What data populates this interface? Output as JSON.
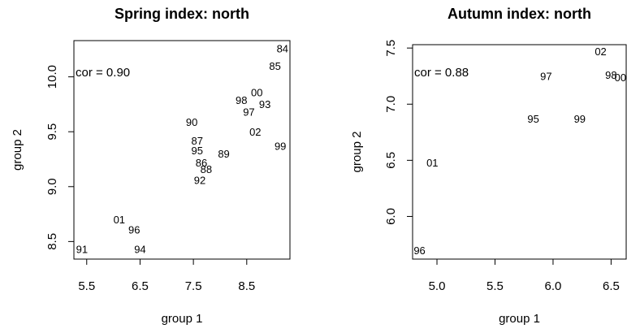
{
  "chart_data": [
    {
      "type": "scatter",
      "title": "Spring index: north",
      "x_label": "group 1",
      "y_label": "group 2",
      "annotation": "cor = 0.90",
      "xlim": [
        5.26,
        9.31
      ],
      "ylim": [
        8.34,
        10.33
      ],
      "xticks": [
        5.5,
        6.5,
        7.5,
        8.5
      ],
      "yticks": [
        {
          "value": 8.5,
          "label": "8.5"
        },
        {
          "value": 9,
          "label": "9.0"
        },
        {
          "value": 9.5,
          "label": "9.5"
        },
        {
          "value": 10,
          "label": "10.0"
        }
      ],
      "series": [
        {
          "color": "#000000",
          "labels": [
            "84",
            "85",
            "00",
            "98",
            "93",
            "97",
            "90",
            "02",
            "87",
            "99",
            "95",
            "89",
            "86",
            "88",
            "92",
            "01",
            "96",
            "91",
            "94"
          ],
          "x": [
            9.17,
            9.03,
            8.69,
            8.4,
            8.84,
            8.54,
            7.47,
            8.66,
            7.57,
            9.13,
            7.57,
            8.07,
            7.65,
            7.74,
            7.62,
            6.11,
            6.39,
            5.41,
            6.5
          ],
          "values": [
            10.25,
            10.09,
            9.85,
            9.78,
            9.74,
            9.67,
            9.58,
            9.49,
            9.41,
            9.36,
            9.32,
            9.29,
            9.21,
            9.15,
            9.05,
            8.69,
            8.6,
            8.42,
            8.42
          ]
        }
      ]
    },
    {
      "type": "scatter",
      "title": "Autumn index: north",
      "x_label": "group 1",
      "y_label": "group 2",
      "annotation": "cor = 0.88",
      "xlim": [
        4.79,
        6.63
      ],
      "ylim": [
        5.62,
        7.53
      ],
      "xticks": [
        {
          "value": 5,
          "label": "5.0"
        },
        5.5,
        {
          "value": 6,
          "label": "6.0"
        },
        6.5
      ],
      "yticks": [
        {
          "value": 6,
          "label": "6.0"
        },
        6.5,
        {
          "value": 7,
          "label": "7.0"
        },
        7.5
      ],
      "series": [
        {
          "color": "#000000",
          "labels": [
            "02",
            "97",
            "98",
            "00",
            "95",
            "99",
            "01",
            "96"
          ],
          "x": [
            6.41,
            5.94,
            6.5,
            6.58,
            5.83,
            6.23,
            4.96,
            4.85
          ],
          "values": [
            7.46,
            7.24,
            7.25,
            7.23,
            6.86,
            6.86,
            6.47,
            5.69
          ]
        }
      ]
    }
  ]
}
